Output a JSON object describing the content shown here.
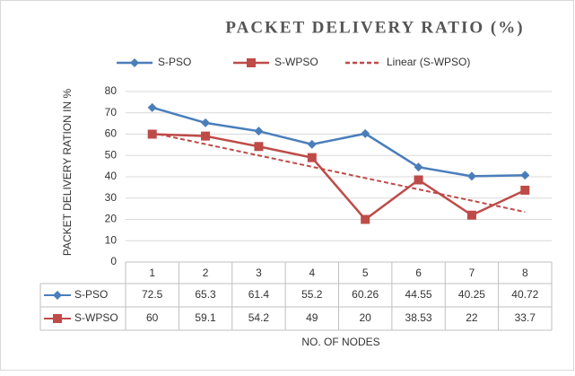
{
  "chart_data": {
    "type": "line",
    "title": "PACKET DELIVERY RATIO (%)",
    "y_label": "PACKET DELIVERY RATION IN %",
    "x_label": "NO. OF NODES",
    "categories": [
      "1",
      "2",
      "3",
      "4",
      "5",
      "6",
      "7",
      "8"
    ],
    "series": [
      {
        "name": "S-PSO",
        "color": "#4a7ebb",
        "marker": "diamond",
        "values": [
          72.5,
          65.3,
          61.4,
          55.2,
          60.26,
          44.55,
          40.25,
          40.72
        ]
      },
      {
        "name": "S-WPSO",
        "color": "#be4b48",
        "marker": "square",
        "values": [
          60,
          59.1,
          54.2,
          49,
          20,
          38.53,
          22,
          33.7
        ]
      },
      {
        "name": "Linear (S-WPSO)",
        "color": "#be4b48",
        "dashed": true,
        "values": [
          60.6,
          55.3,
          50.0,
          44.7,
          39.4,
          34.1,
          28.8,
          23.5
        ]
      }
    ],
    "ylim": [
      0,
      80
    ],
    "yticks": [
      0,
      10,
      20,
      30,
      40,
      50,
      60,
      70,
      80
    ],
    "grid": true,
    "data_table": true
  }
}
